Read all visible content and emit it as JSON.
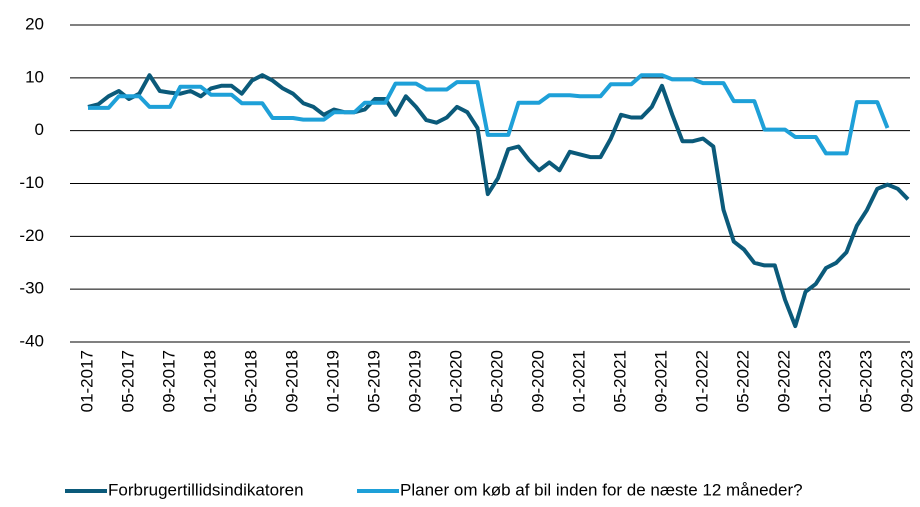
{
  "chart_data": {
    "type": "line",
    "categories": [
      "01-2017",
      null,
      null,
      null,
      "05-2017",
      null,
      null,
      null,
      "09-2017",
      null,
      null,
      null,
      "01-2018",
      null,
      null,
      null,
      "05-2018",
      null,
      null,
      null,
      "09-2018",
      null,
      null,
      null,
      "01-2019",
      null,
      null,
      null,
      "05-2019",
      null,
      null,
      null,
      "09-2019",
      null,
      null,
      null,
      "01-2020",
      null,
      null,
      null,
      "05-2020",
      null,
      null,
      null,
      "09-2020",
      null,
      null,
      null,
      "01-2021",
      null,
      null,
      null,
      "05-2021",
      null,
      null,
      null,
      "09-2021",
      null,
      null,
      null,
      "01-2022",
      null,
      null,
      null,
      "05-2022",
      null,
      null,
      null,
      "09-2022",
      null,
      null,
      null,
      "01-2023",
      null,
      null,
      null,
      "05-2023",
      null,
      null,
      null,
      "09-2023"
    ],
    "series": [
      {
        "name": "Forbrugertillidsindikatoren",
        "color": "#0b5a7a",
        "values": [
          4.5,
          5,
          6.5,
          7.5,
          6,
          7,
          10.5,
          7.5,
          7.2,
          7,
          7.5,
          6.5,
          8,
          8.5,
          8.5,
          7,
          9.5,
          10.5,
          9.5,
          8,
          7,
          5.2,
          4.5,
          3,
          4,
          3.5,
          3.5,
          4,
          6,
          6,
          3,
          6.5,
          4.5,
          2,
          1.5,
          2.5,
          4.5,
          3.5,
          0.5,
          -12,
          -9,
          -3.5,
          -3,
          -5.5,
          -7.5,
          -6,
          -7.5,
          -4,
          -4.5,
          -5,
          -5,
          -1.5,
          3,
          2.5,
          2.5,
          4.5,
          8.5,
          3,
          -2,
          -2,
          -1.5,
          -3,
          -15,
          -21,
          -22.5,
          -25,
          -25.5,
          -25.5,
          -32,
          -37,
          -30.5,
          -29,
          -26,
          -25,
          -23,
          -18,
          -15,
          -11,
          -10.2,
          -11,
          -13
        ]
      },
      {
        "name": "Planer om køb af bil inden for de næste 12 måneder?",
        "color": "#1ea0d8",
        "values": [
          4.3,
          4.3,
          4.3,
          6.5,
          6.5,
          6.5,
          4.5,
          4.5,
          4.5,
          8.3,
          8.3,
          8.3,
          6.8,
          6.8,
          6.8,
          5.2,
          5.2,
          5.2,
          2.4,
          2.4,
          2.4,
          2.1,
          2.1,
          2.1,
          3.5,
          3.5,
          3.5,
          5.3,
          5.3,
          5.3,
          8.9,
          8.9,
          8.9,
          7.8,
          7.8,
          7.8,
          9.2,
          9.2,
          9.2,
          -0.8,
          -0.8,
          -0.8,
          5.3,
          5.3,
          5.3,
          6.7,
          6.7,
          6.7,
          6.5,
          6.5,
          6.5,
          8.8,
          8.8,
          8.8,
          10.5,
          10.5,
          10.5,
          9.7,
          9.7,
          9.7,
          9,
          9,
          9,
          5.6,
          5.6,
          5.6,
          0.2,
          0.2,
          0.2,
          -1.2,
          -1.2,
          -1.2,
          -4.3,
          -4.3,
          -4.3,
          5.4,
          5.4,
          5.4,
          0.5,
          null,
          null
        ]
      }
    ],
    "ylim": [
      -40,
      20
    ],
    "yticks": [
      -40,
      -30,
      -20,
      -10,
      0,
      10,
      20
    ],
    "grid": true
  }
}
